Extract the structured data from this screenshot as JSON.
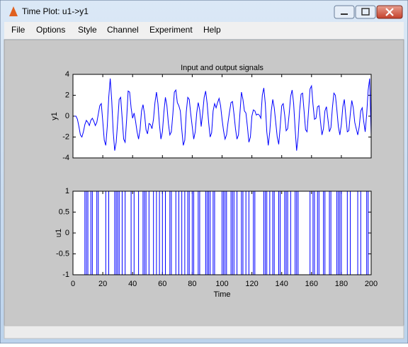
{
  "window": {
    "title": "Time Plot: u1->y1",
    "menu": [
      "File",
      "Options",
      "Style",
      "Channel",
      "Experiment",
      "Help"
    ]
  },
  "chart_data": [
    {
      "type": "line",
      "title": "Input and output signals",
      "y_label": "y1",
      "x": [
        1,
        2,
        3,
        4,
        5,
        6,
        7,
        8,
        9,
        10,
        11,
        12,
        13,
        14,
        15,
        16,
        17,
        18,
        19,
        20,
        21,
        22,
        23,
        24,
        25,
        26,
        27,
        28,
        29,
        30,
        31,
        32,
        33,
        34,
        35,
        36,
        37,
        38,
        39,
        40,
        41,
        42,
        43,
        44,
        45,
        46,
        47,
        48,
        49,
        50,
        51,
        52,
        53,
        54,
        55,
        56,
        57,
        58,
        59,
        60,
        61,
        62,
        63,
        64,
        65,
        66,
        67,
        68,
        69,
        70,
        71,
        72,
        73,
        74,
        75,
        76,
        77,
        78,
        79,
        80,
        81,
        82,
        83,
        84,
        85,
        86,
        87,
        88,
        89,
        90,
        91,
        92,
        93,
        94,
        95,
        96,
        97,
        98,
        99,
        100,
        101,
        102,
        103,
        104,
        105,
        106,
        107,
        108,
        109,
        110,
        111,
        112,
        113,
        114,
        115,
        116,
        117,
        118,
        119,
        120,
        121,
        122,
        123,
        124,
        125,
        126,
        127,
        128,
        129,
        130,
        131,
        132,
        133,
        134,
        135,
        136,
        137,
        138,
        139,
        140,
        141,
        142,
        143,
        144,
        145,
        146,
        147,
        148,
        149,
        150,
        151,
        152,
        153,
        154,
        155,
        156,
        157,
        158,
        159,
        160,
        161,
        162,
        163,
        164,
        165,
        166,
        167,
        168,
        169,
        170,
        171,
        172,
        173,
        174,
        175,
        176,
        177,
        178,
        179,
        180,
        181,
        182,
        183,
        184,
        185,
        186,
        187,
        188,
        189,
        190,
        191,
        192,
        193,
        194,
        195,
        196,
        197,
        198,
        199,
        200
      ],
      "series": [
        {
          "name": "y1",
          "color": "#0000ff",
          "values": [
            0,
            0,
            -0.3,
            -1,
            -1.8,
            -2,
            -1.5,
            -0.8,
            -0.4,
            -0.6,
            -0.9,
            -0.4,
            -0.2,
            -0.5,
            -0.9,
            -0.6,
            0.2,
            1.0,
            1.2,
            -0.5,
            -2.3,
            -2.8,
            -1,
            1.8,
            3.6,
            1.5,
            -1.5,
            -3.3,
            -2.5,
            -0.5,
            1.6,
            1.8,
            -0.2,
            -2.2,
            -2.5,
            -0.3,
            2.4,
            2.3,
            0.8,
            -0.2,
            0.3,
            -0.5,
            -1.5,
            -2.2,
            -1.3,
            0.5,
            1.1,
            0.2,
            -1.3,
            -1.7,
            -0.7,
            -0.8,
            -1.2,
            -0.3,
            1.3,
            2.3,
            1.2,
            -0.8,
            -2.2,
            -1.5,
            0.4,
            1.8,
            1.0,
            -0.7,
            -1.8,
            -1.5,
            0.2,
            2.3,
            2.5,
            1.3,
            1.0,
            0.5,
            -1.3,
            -2.8,
            -2.3,
            0.4,
            1.8,
            1.6,
            0.2,
            -1.0,
            -2.2,
            -1.5,
            0.3,
            1.3,
            0.6,
            -1.0,
            0.3,
            1.8,
            2.4,
            1.2,
            -0.6,
            -2.0,
            -1.6,
            0.5,
            1.2,
            0.8,
            1.3,
            1.7,
            1.0,
            -0.3,
            -1.4,
            -2.2,
            -1.8,
            -0.6,
            0.4,
            1.3,
            1.4,
            0.2,
            -1.2,
            -2.2,
            -1.8,
            0.3,
            2.3,
            1.6,
            0.5,
            0.3,
            -1.0,
            -2.5,
            -2.0,
            0.0,
            0.6,
            0.5,
            0.1,
            0.2,
            0.1,
            -0.2,
            2.0,
            2.7,
            1.2,
            -1.5,
            -2.8,
            -1.5,
            0.5,
            1.6,
            0.8,
            -0.6,
            -2.0,
            -2.7,
            -1.0,
            1.0,
            1.2,
            0.1,
            -1.4,
            -1.2,
            0.2,
            1.9,
            2.5,
            1.2,
            -1.2,
            -3.3,
            -2.0,
            0.5,
            2.1,
            2.2,
            0.5,
            -1.3,
            -1.5,
            0.5,
            2.6,
            2.9,
            1.1,
            -0.3,
            -0.2,
            0.9,
            1.0,
            -0.5,
            -1.8,
            -1.2,
            0.5,
            0.9,
            -0.3,
            -1.5,
            -1.1,
            0.8,
            2.2,
            2.0,
            0.6,
            -1.0,
            -1.8,
            -0.8,
            0.9,
            1.6,
            0.0,
            -1.5,
            -1.4,
            0.2,
            1.5,
            0.8,
            -0.6,
            -1.2,
            -1.8,
            -1.0,
            0.5,
            0.8,
            -0.5,
            -1.5,
            0.2,
            2.5,
            3.6,
            -1.8
          ]
        }
      ],
      "xlim": [
        0,
        200
      ],
      "xticks": [
        0,
        20,
        40,
        60,
        80,
        100,
        120,
        140,
        160,
        180,
        200
      ],
      "ylim": [
        -4,
        4
      ],
      "yticks": [
        -4,
        -2,
        0,
        2,
        4
      ]
    },
    {
      "type": "step",
      "x_label": "Time",
      "y_label": "u1",
      "x": [
        1,
        2,
        3,
        4,
        5,
        6,
        7,
        8,
        9,
        10,
        11,
        12,
        13,
        14,
        15,
        16,
        17,
        18,
        19,
        20,
        21,
        22,
        23,
        24,
        25,
        26,
        27,
        28,
        29,
        30,
        31,
        32,
        33,
        34,
        35,
        36,
        37,
        38,
        39,
        40,
        41,
        42,
        43,
        44,
        45,
        46,
        47,
        48,
        49,
        50,
        51,
        52,
        53,
        54,
        55,
        56,
        57,
        58,
        59,
        60,
        61,
        62,
        63,
        64,
        65,
        66,
        67,
        68,
        69,
        70,
        71,
        72,
        73,
        74,
        75,
        76,
        77,
        78,
        79,
        80,
        81,
        82,
        83,
        84,
        85,
        86,
        87,
        88,
        89,
        90,
        91,
        92,
        93,
        94,
        95,
        96,
        97,
        98,
        99,
        100,
        101,
        102,
        103,
        104,
        105,
        106,
        107,
        108,
        109,
        110,
        111,
        112,
        113,
        114,
        115,
        116,
        117,
        118,
        119,
        120,
        121,
        122,
        123,
        124,
        125,
        126,
        127,
        128,
        129,
        130,
        131,
        132,
        133,
        134,
        135,
        136,
        137,
        138,
        139,
        140,
        141,
        142,
        143,
        144,
        145,
        146,
        147,
        148,
        149,
        150,
        151,
        152,
        153,
        154,
        155,
        156,
        157,
        158,
        159,
        160,
        161,
        162,
        163,
        164,
        165,
        166,
        167,
        168,
        169,
        170,
        171,
        172,
        173,
        174,
        175,
        176,
        177,
        178,
        179,
        180,
        181,
        182,
        183,
        184,
        185,
        186,
        187,
        188,
        189,
        190,
        191,
        192,
        193,
        194,
        195,
        196,
        197,
        198,
        199,
        200
      ],
      "series": [
        {
          "name": "u1",
          "color": "#0000ff",
          "values": [
            -1,
            -1,
            -1,
            -1,
            -1,
            -1,
            -1,
            1,
            -1,
            1,
            1,
            -1,
            1,
            1,
            1,
            -1,
            1,
            1,
            1,
            1,
            1,
            -1,
            -1,
            1,
            1,
            1,
            1,
            -1,
            1,
            -1,
            1,
            1,
            -1,
            -1,
            1,
            1,
            1,
            1,
            -1,
            -1,
            1,
            1,
            1,
            -1,
            -1,
            -1,
            1,
            -1,
            1,
            1,
            -1,
            -1,
            -1,
            1,
            1,
            -1,
            -1,
            1,
            1,
            -1,
            -1,
            1,
            1,
            1,
            -1,
            1,
            1,
            1,
            -1,
            -1,
            1,
            1,
            -1,
            -1,
            1,
            1,
            -1,
            1,
            1,
            -1,
            1,
            1,
            1,
            -1,
            1,
            1,
            1,
            1,
            -1,
            1,
            -1,
            1,
            1,
            -1,
            1,
            1,
            1,
            1,
            1,
            -1,
            1,
            -1,
            1,
            1,
            1,
            -1,
            1,
            -1,
            -1,
            1,
            1,
            1,
            -1,
            1,
            1,
            -1,
            -1,
            1,
            1,
            1,
            -1,
            1,
            1,
            1,
            1,
            1,
            1,
            -1,
            1,
            -1,
            -1,
            1,
            1,
            -1,
            1,
            1,
            1,
            -1,
            1,
            1,
            1,
            -1,
            1,
            -1,
            -1,
            1,
            1,
            1,
            -1,
            1,
            -1,
            -1,
            -1,
            -1,
            -1,
            -1,
            -1,
            -1,
            1,
            1,
            -1,
            1,
            1,
            -1,
            1,
            1,
            1,
            -1,
            1,
            1,
            1,
            -1,
            1,
            1,
            1,
            1,
            -1,
            1,
            -1,
            1,
            1,
            1,
            1,
            -1,
            -1,
            1,
            1,
            1,
            1,
            1,
            -1,
            -1,
            1,
            1,
            1,
            1,
            -1,
            1,
            1,
            1
          ]
        }
      ],
      "xlim": [
        0,
        200
      ],
      "xticks": [
        0,
        20,
        40,
        60,
        80,
        100,
        120,
        140,
        160,
        180,
        200
      ],
      "ylim": [
        -1,
        1
      ],
      "yticks": [
        -1,
        -0.5,
        0,
        0.5,
        1
      ]
    }
  ]
}
